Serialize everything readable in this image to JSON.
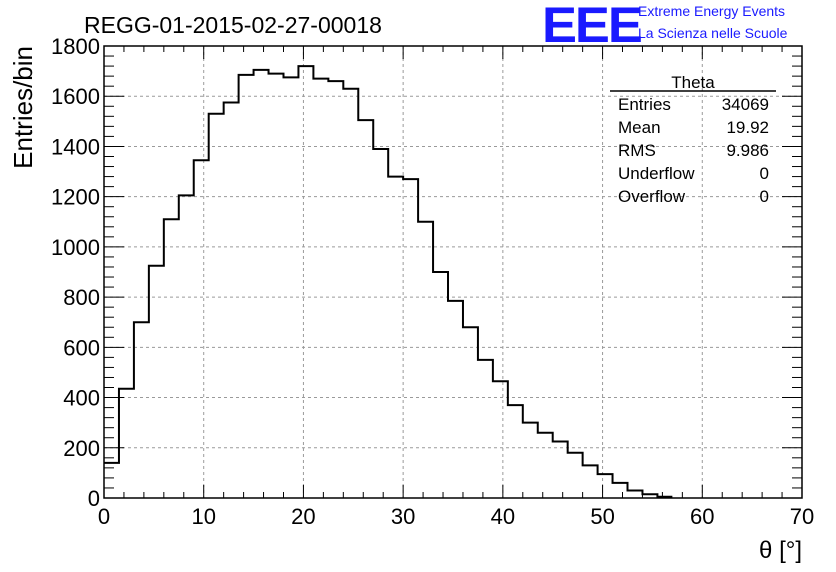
{
  "run_title": "REGG-01-2015-02-27-00018",
  "logo": {
    "mark": "EEE",
    "line1": "Extreme Energy Events",
    "line2": "La Scienza nelle Scuole",
    "color": "#1a1aff"
  },
  "stats": {
    "name": "Theta",
    "rows": [
      {
        "label": "Entries",
        "value": "34069"
      },
      {
        "label": "Mean",
        "value": "19.92"
      },
      {
        "label": "RMS",
        "value": "9.986"
      },
      {
        "label": "Underflow",
        "value": "0"
      },
      {
        "label": "Overflow",
        "value": "0"
      }
    ]
  },
  "chart_data": {
    "type": "histogram",
    "title": "REGG-01-2015-02-27-00018",
    "xlabel": "θ [°]",
    "ylabel": "Entries/bin",
    "xlim": [
      0,
      70
    ],
    "ylim": [
      0,
      1800
    ],
    "grid": true,
    "bin_width": 1.5,
    "bin_edges_start": 0,
    "values": [
      140,
      435,
      700,
      925,
      1110,
      1205,
      1345,
      1530,
      1575,
      1685,
      1705,
      1690,
      1675,
      1720,
      1670,
      1660,
      1630,
      1505,
      1390,
      1280,
      1270,
      1100,
      900,
      785,
      680,
      550,
      465,
      370,
      300,
      260,
      225,
      180,
      130,
      95,
      60,
      30,
      15,
      5
    ],
    "xticks": [
      0,
      10,
      20,
      30,
      40,
      50,
      60,
      70
    ],
    "yticks": [
      0,
      200,
      400,
      600,
      800,
      1000,
      1200,
      1400,
      1600,
      1800
    ],
    "line_color": "#000000"
  }
}
